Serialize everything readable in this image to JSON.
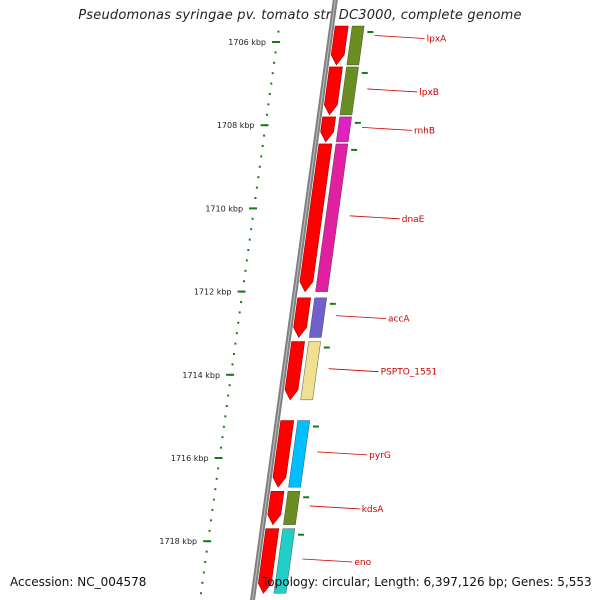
{
  "title": "Pseudomonas syringae pv. tomato str. DC3000, complete genome",
  "footer": {
    "accession": "Accession: NC_004578",
    "topology": "Topology: circular;",
    "length": "Length: 6,397,126 bp;",
    "genes": "Genes: 5,553"
  },
  "ruler": {
    "ticks": [
      {
        "label": "1706 kbp",
        "kbp": 1706
      },
      {
        "label": "1708 kbp",
        "kbp": 1708
      },
      {
        "label": "1710 kbp",
        "kbp": 1710
      },
      {
        "label": "1712 kbp",
        "kbp": 1712
      },
      {
        "label": "1714 kbp",
        "kbp": 1714
      },
      {
        "label": "1716 kbp",
        "kbp": 1716
      },
      {
        "label": "1718 kbp",
        "kbp": 1718
      }
    ]
  },
  "colors": {
    "cds": "#ff0000",
    "backbone": "#808080",
    "ruler": "#1a7a1a",
    "label": "#cc0000"
  },
  "genes": [
    {
      "name": "lpxA",
      "start_kbp": 1705.55,
      "end_kbp": 1706.6,
      "color": "#6b8e23"
    },
    {
      "name": "lpxB",
      "start_kbp": 1706.6,
      "end_kbp": 1707.8,
      "color": "#6b8e23"
    },
    {
      "name": "rnhB",
      "start_kbp": 1707.8,
      "end_kbp": 1708.45,
      "color": "#e020c0"
    },
    {
      "name": "dnaE",
      "start_kbp": 1708.45,
      "end_kbp": 1712.05,
      "color": "#e020a0"
    },
    {
      "name": "accA",
      "start_kbp": 1712.15,
      "end_kbp": 1713.15,
      "color": "#7060cc"
    },
    {
      "name": "PSPTO_1551",
      "start_kbp": 1713.2,
      "end_kbp": 1714.65,
      "color": "#f0e090"
    },
    {
      "name": "pyrG",
      "start_kbp": 1715.1,
      "end_kbp": 1716.75,
      "color": "#00bfff"
    },
    {
      "name": "kdsA",
      "start_kbp": 1716.8,
      "end_kbp": 1717.65,
      "color": "#6b8e23"
    },
    {
      "name": "eno",
      "start_kbp": 1717.7,
      "end_kbp": 1719.3,
      "color": "#20d0c8"
    }
  ],
  "cds_segments": [
    {
      "start_kbp": 1705.4,
      "end_kbp": 1706.6
    },
    {
      "start_kbp": 1706.6,
      "end_kbp": 1707.8
    },
    {
      "start_kbp": 1707.8,
      "end_kbp": 1708.45
    },
    {
      "start_kbp": 1708.45,
      "end_kbp": 1712.05
    },
    {
      "start_kbp": 1712.15,
      "end_kbp": 1713.15
    },
    {
      "start_kbp": 1713.2,
      "end_kbp": 1714.65
    },
    {
      "start_kbp": 1715.1,
      "end_kbp": 1716.75
    },
    {
      "start_kbp": 1716.8,
      "end_kbp": 1717.65
    },
    {
      "start_kbp": 1717.7,
      "end_kbp": 1719.3
    }
  ]
}
